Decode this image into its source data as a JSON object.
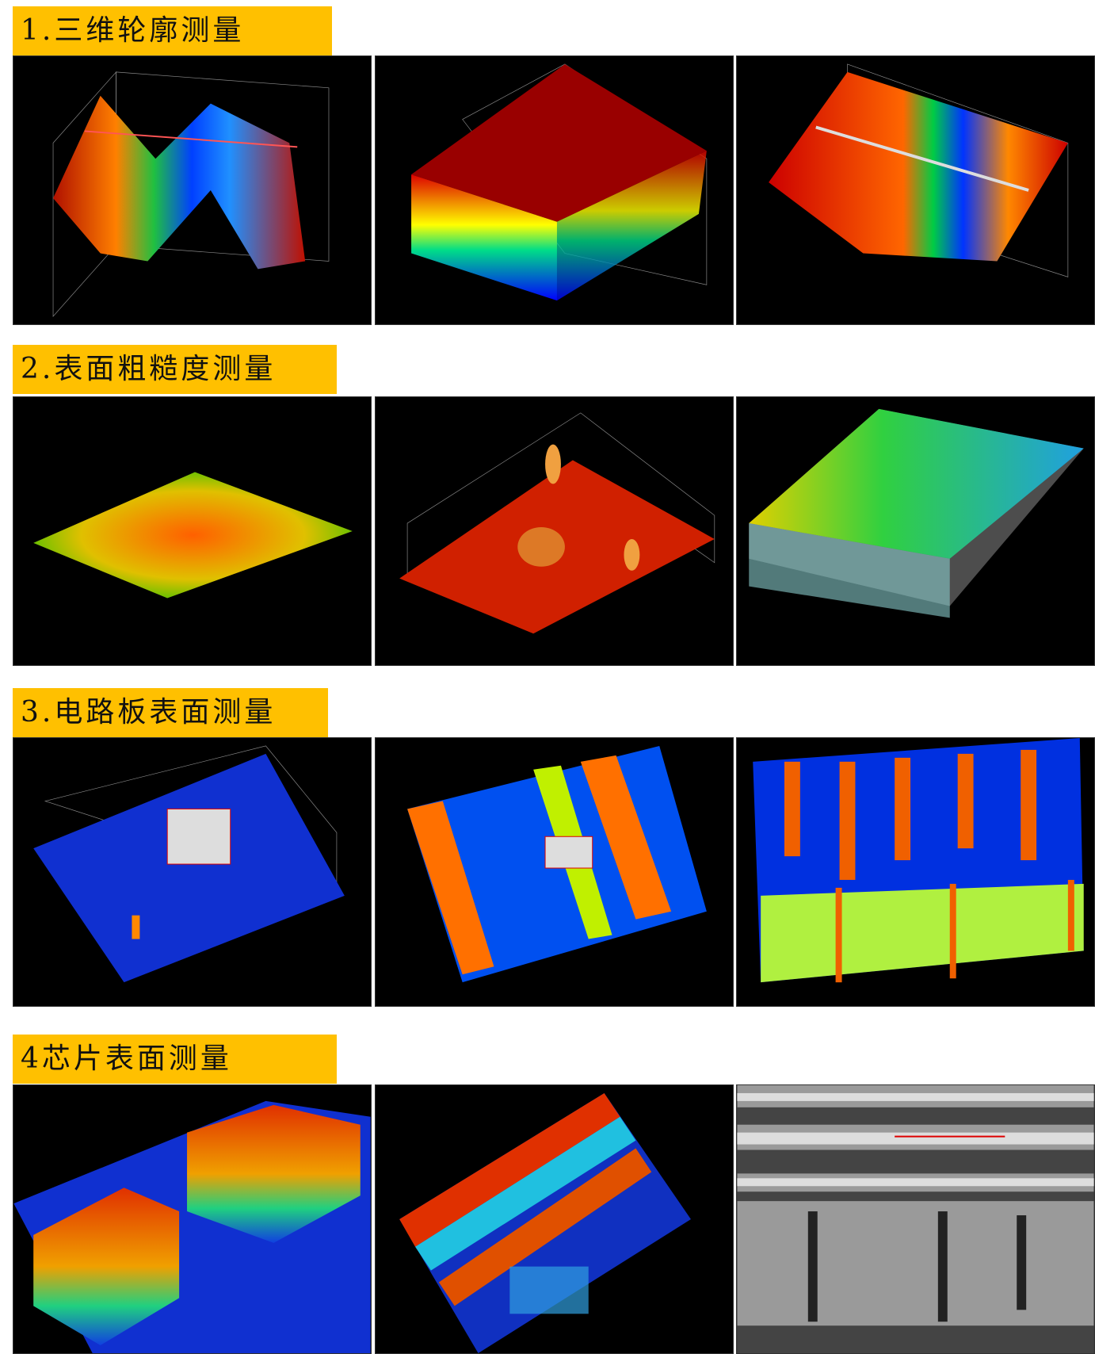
{
  "sections": [
    {
      "title": "1.三维轮廓测量",
      "images": [
        "3d-profile-double-ridge",
        "3d-profile-grooves",
        "3d-profile-curved-surface"
      ]
    },
    {
      "title": "2.表面粗糙度测量",
      "images": [
        "roughness-surface-1",
        "roughness-surface-2",
        "roughness-surface-3"
      ]
    },
    {
      "title": "3.电路板表面测量",
      "images": [
        "pcb-surface-1",
        "pcb-surface-2",
        "pcb-surface-3"
      ]
    },
    {
      "title": "4芯片表面测量",
      "images": [
        "chip-surface-1",
        "chip-surface-2",
        "chip-micrograph"
      ]
    }
  ],
  "colors": {
    "header_bg": "#FFC000",
    "panel_bg": "#000000"
  }
}
